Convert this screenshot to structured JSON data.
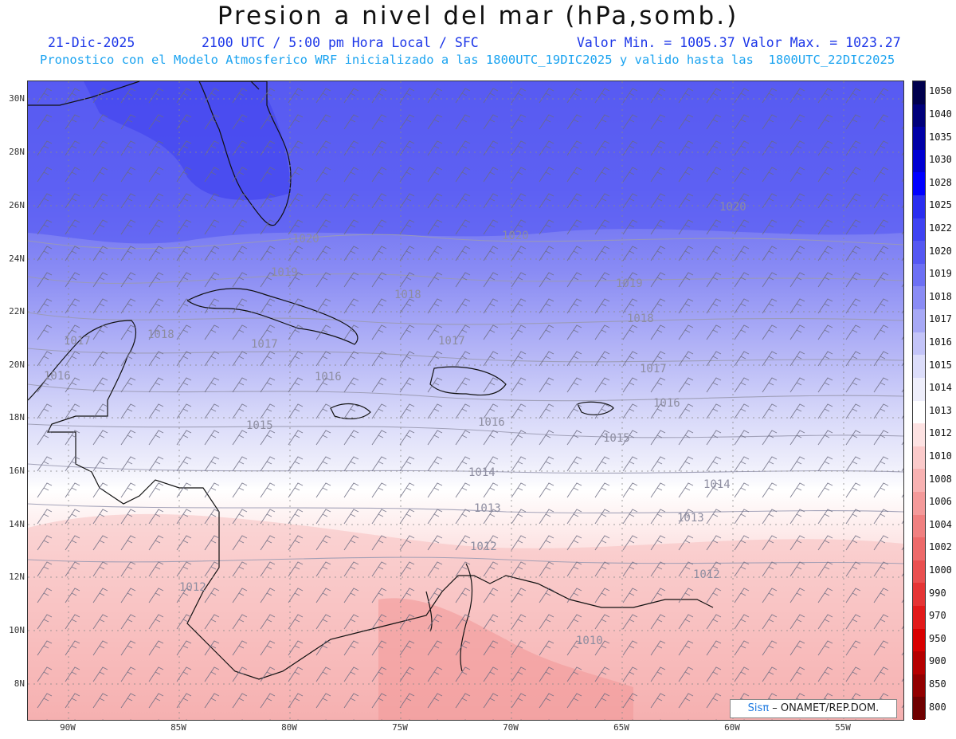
{
  "title": "Presion a nivel del mar (hPa,somb.)",
  "subtitle": {
    "date": "21-Dic-2025",
    "time": "2100 UTC / 5:00 pm Hora Local / SFC",
    "min": "Valor Min. = 1005.37",
    "max": "Valor Max. = 1023.27",
    "forecast": "Pronostico con el Modelo Atmosferico WRF inicializado a las 1800UTC_19DIC2025 y valido hasta las  1800UTC_22DIC2025"
  },
  "lat_labels": [
    "30N",
    "28N",
    "26N",
    "24N",
    "22N",
    "20N",
    "18N",
    "16N",
    "14N",
    "12N",
    "10N",
    "8N"
  ],
  "lon_labels": [
    "90W",
    "85W",
    "80W",
    "75W",
    "70W",
    "65W",
    "60W",
    "55W"
  ],
  "colorbar": {
    "labels": [
      "1050",
      "1040",
      "1035",
      "1030",
      "1028",
      "1025",
      "1022",
      "1020",
      "1019",
      "1018",
      "1017",
      "1016",
      "1015",
      "1014",
      "1013",
      "1012",
      "1010",
      "1008",
      "1006",
      "1004",
      "1002",
      "1000",
      "990",
      "970",
      "950",
      "900",
      "850",
      "800"
    ],
    "colors": [
      "#00004d",
      "#00007a",
      "#0000a6",
      "#0000d2",
      "#0000ff",
      "#2a2ef0",
      "#3f43f2",
      "#5558f3",
      "#6d70f4",
      "#8a8cf5",
      "#a7a9f6",
      "#c3c4f8",
      "#dcddfa",
      "#eeeefb",
      "#ffffff",
      "#fde2e2",
      "#fbcaca",
      "#f8b2b2",
      "#f49a9a",
      "#f08080",
      "#ed6a6a",
      "#e95050",
      "#e53535",
      "#e21a1a",
      "#d80000",
      "#b50000",
      "#920000",
      "#6f0000"
    ]
  },
  "contour_labels": [
    "1020",
    "1020",
    "1020",
    "1019",
    "1019",
    "1018",
    "1018",
    "1018",
    "1017",
    "1017",
    "1017",
    "1017",
    "1016",
    "1016",
    "1016",
    "1016",
    "1015",
    "1015",
    "1014",
    "1014",
    "1013",
    "1013",
    "1012",
    "1012",
    "1012",
    "1010"
  ],
  "credit": {
    "brand": "Sis",
    "pi": "π",
    "text": "– ONAMET/REP.DOM."
  }
}
